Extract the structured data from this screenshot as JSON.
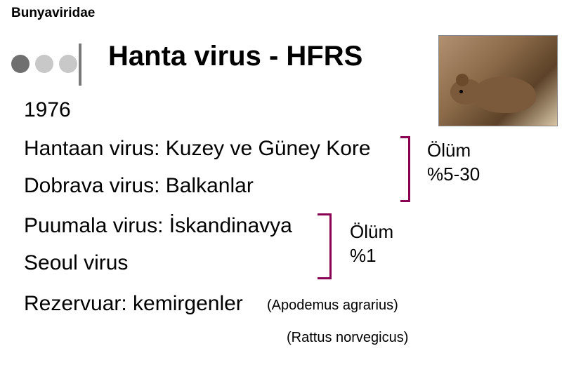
{
  "header": "Bunyaviridae",
  "title": "Hanta virus - HFRS",
  "year": "1976",
  "lines": {
    "hantaan": "Hantaan virus: Kuzey ve Güney Kore",
    "dobrava": "Dobrava virus: Balkanlar",
    "puumala": "Puumala virus: İskandinavya",
    "seoul": "Seoul virus",
    "reservoir": "Rezervuar: kemirgenler"
  },
  "parenth": {
    "apodemus": "(Apodemus agrarius)",
    "rattus": "(Rattus norvegicus)"
  },
  "mortality1": {
    "label": "Ölüm",
    "value": "%5-30"
  },
  "mortality2": {
    "label": "Ölüm",
    "value": "%1"
  },
  "colors": {
    "bracket": "#890052",
    "dot_dark": "#707070",
    "dot_light": "#c8c8c8",
    "text": "#000000",
    "background": "#ffffff"
  },
  "fonts": {
    "main_family": "Comic Sans MS",
    "header_size_pt": 14,
    "title_size_pt": 30,
    "body_size_pt": 22,
    "paren_size_pt": 15,
    "mortality_size_pt": 19
  }
}
